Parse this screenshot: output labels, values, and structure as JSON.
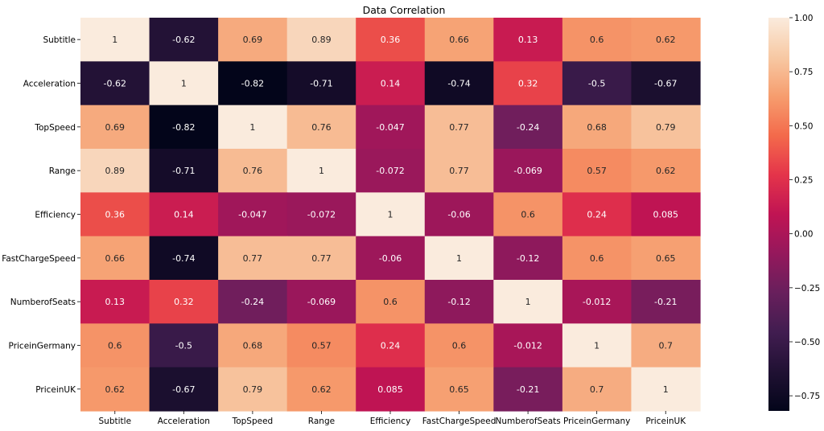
{
  "chart_data": {
    "type": "heatmap",
    "title": "Data Correlation",
    "xlabel": "",
    "ylabel": "",
    "x_categories": [
      "Subtitle",
      "Acceleration",
      "TopSpeed",
      "Range",
      "Efficiency",
      "FastChargeSpeed",
      "NumberofSeats",
      "PriceinGermany",
      "PriceinUK"
    ],
    "y_categories": [
      "Subtitle",
      "Acceleration",
      "TopSpeed",
      "Range",
      "Efficiency",
      "FastChargeSpeed",
      "NumberofSeats",
      "PriceinGermany",
      "PriceinUK"
    ],
    "values": [
      [
        1,
        -0.62,
        0.69,
        0.89,
        0.36,
        0.66,
        0.13,
        0.6,
        0.62
      ],
      [
        -0.62,
        1,
        -0.82,
        -0.71,
        0.14,
        -0.74,
        0.32,
        -0.5,
        -0.67
      ],
      [
        0.69,
        -0.82,
        1,
        0.76,
        -0.047,
        0.77,
        -0.24,
        0.68,
        0.79
      ],
      [
        0.89,
        -0.71,
        0.76,
        1,
        -0.072,
        0.77,
        -0.069,
        0.57,
        0.62
      ],
      [
        0.36,
        0.14,
        -0.047,
        -0.072,
        1,
        -0.06,
        0.6,
        0.24,
        0.085
      ],
      [
        0.66,
        -0.74,
        0.77,
        0.77,
        -0.06,
        1,
        -0.12,
        0.6,
        0.65
      ],
      [
        0.13,
        0.32,
        -0.24,
        -0.069,
        0.6,
        -0.12,
        1,
        -0.012,
        -0.21
      ],
      [
        0.6,
        -0.5,
        0.68,
        0.57,
        0.24,
        0.6,
        -0.012,
        1,
        0.7
      ],
      [
        0.62,
        -0.67,
        0.79,
        0.62,
        0.085,
        0.65,
        -0.21,
        0.7,
        1
      ]
    ],
    "value_labels": [
      [
        "1",
        "-0.62",
        "0.69",
        "0.89",
        "0.36",
        "0.66",
        "0.13",
        "0.6",
        "0.62"
      ],
      [
        "-0.62",
        "1",
        "-0.82",
        "-0.71",
        "0.14",
        "-0.74",
        "0.32",
        "-0.5",
        "-0.67"
      ],
      [
        "0.69",
        "-0.82",
        "1",
        "0.76",
        "-0.047",
        "0.77",
        "-0.24",
        "0.68",
        "0.79"
      ],
      [
        "0.89",
        "-0.71",
        "0.76",
        "1",
        "-0.072",
        "0.77",
        "-0.069",
        "0.57",
        "0.62"
      ],
      [
        "0.36",
        "0.14",
        "-0.047",
        "-0.072",
        "1",
        "-0.06",
        "0.6",
        "0.24",
        "0.085"
      ],
      [
        "0.66",
        "-0.74",
        "0.77",
        "0.77",
        "-0.06",
        "1",
        "-0.12",
        "0.6",
        "0.65"
      ],
      [
        "0.13",
        "0.32",
        "-0.24",
        "-0.069",
        "0.6",
        "-0.12",
        "1",
        "-0.012",
        "-0.21"
      ],
      [
        "0.6",
        "-0.5",
        "0.68",
        "0.57",
        "0.24",
        "0.6",
        "-0.012",
        "1",
        "0.7"
      ],
      [
        "0.62",
        "-0.67",
        "0.79",
        "0.62",
        "0.085",
        "0.65",
        "-0.21",
        "0.7",
        "1"
      ]
    ],
    "colormap": "rocket",
    "vmin": -0.82,
    "vmax": 1.0,
    "colorbar_ticks": [
      1.0,
      0.75,
      0.5,
      0.25,
      0.0,
      -0.25,
      -0.5,
      -0.75
    ],
    "colorbar_tick_labels": [
      "1.00",
      "0.75",
      "0.50",
      "0.25",
      "0.00",
      "−0.25",
      "−0.50",
      "−0.75"
    ],
    "grid": false,
    "legend": "colorbar-right"
  }
}
